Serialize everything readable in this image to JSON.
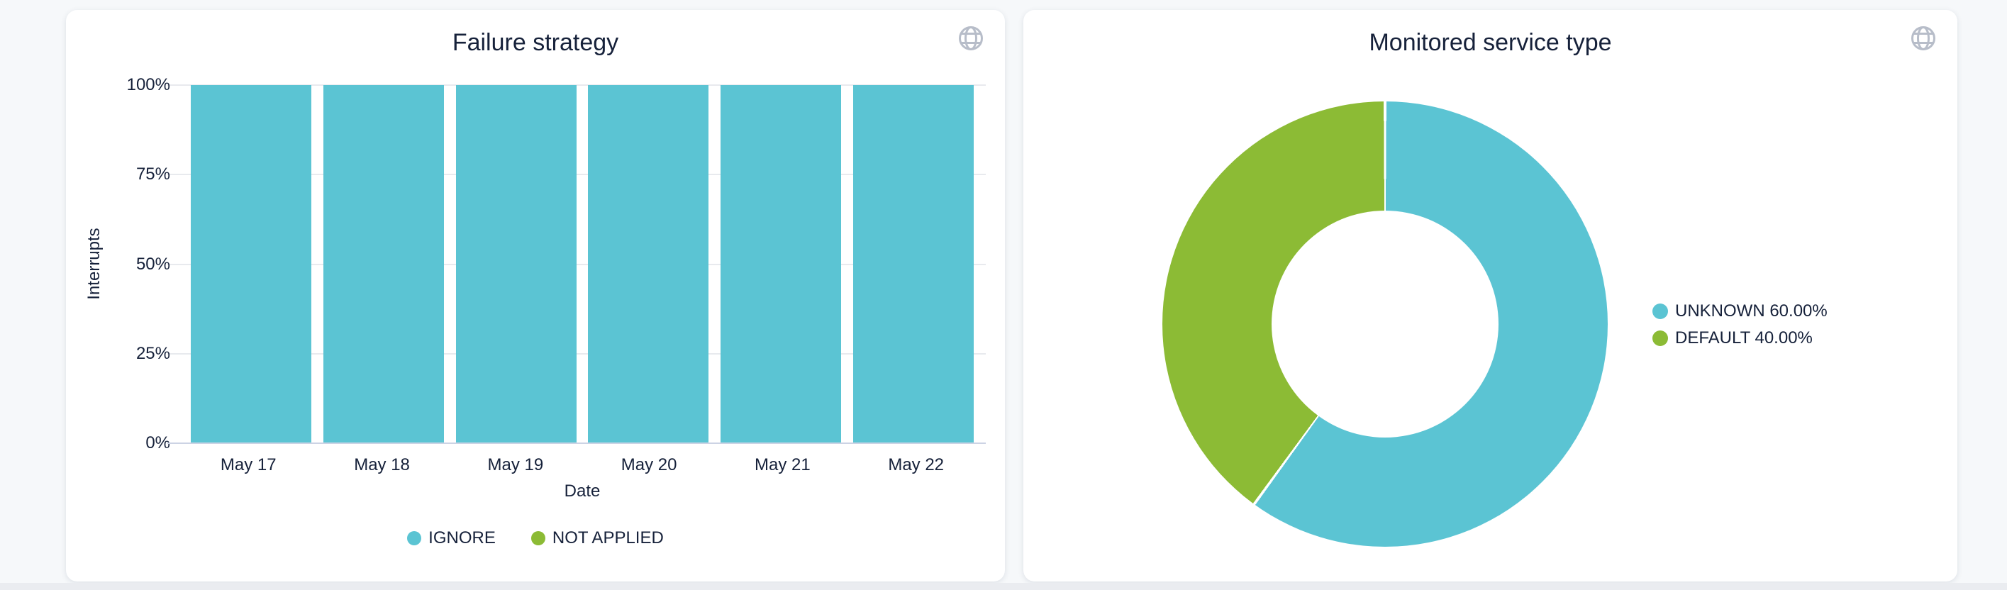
{
  "colors": {
    "background": "#f6f8fa",
    "bottom_strip": "#eaecf0",
    "card_background": "#ffffff",
    "text": "#16213a",
    "grid_line": "#e8eaee",
    "axis_line": "#ccd3e4",
    "icon_gray": "#b7bdc9",
    "teal": "#5bc4d3",
    "green": "#8cbb35"
  },
  "left_card": {
    "title": "Failure strategy",
    "globe_icon": "globe-icon"
  },
  "right_card": {
    "title": "Monitored service type",
    "globe_icon": "globe-icon"
  },
  "chart_data": [
    {
      "type": "bar",
      "title": "Failure strategy",
      "xlabel": "Date",
      "ylabel": "Interrupts",
      "stacked": true,
      "grid": true,
      "legend_position": "bottom",
      "categories": [
        "May 17",
        "May 18",
        "May 19",
        "May 20",
        "May 21",
        "May 22"
      ],
      "series": [
        {
          "name": "IGNORE",
          "color_key": "teal",
          "values": [
            100,
            100,
            100,
            100,
            100,
            100
          ]
        },
        {
          "name": "NOT APPLIED",
          "color_key": "green",
          "values": [
            0,
            0,
            0,
            0,
            0,
            0
          ]
        }
      ],
      "y_ticks": [
        "0%",
        "25%",
        "50%",
        "75%",
        "100%"
      ],
      "ylim": [
        0,
        100
      ],
      "unit": "percent"
    },
    {
      "type": "pie",
      "title": "Monitored service type",
      "donut": true,
      "legend_position": "right",
      "slices": [
        {
          "label": "UNKNOWN",
          "value": 60.0,
          "pct_label": "60.00%",
          "color_key": "teal"
        },
        {
          "label": "DEFAULT",
          "value": 40.0,
          "pct_label": "40.00%",
          "color_key": "green"
        }
      ]
    }
  ]
}
